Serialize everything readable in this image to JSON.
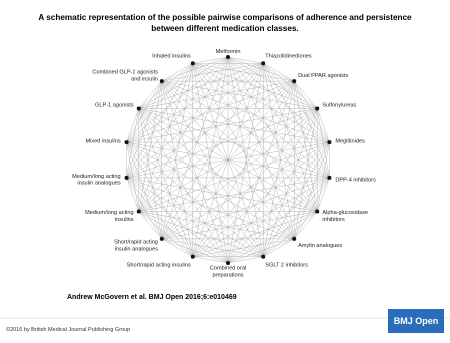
{
  "title": [
    "A schematic representation of the possible pairwise comparisons of adherence and persistence",
    "between different medication classes."
  ],
  "nodes": [
    {
      "label": [
        "Metformin"
      ]
    },
    {
      "label": [
        "Thiazolidinediones"
      ]
    },
    {
      "label": [
        "Dual PPAR agonists"
      ]
    },
    {
      "label": [
        "Sulfonylureas"
      ]
    },
    {
      "label": [
        "Meglitinides"
      ]
    },
    {
      "label": [
        "DPP-4 inhibitors"
      ]
    },
    {
      "label": [
        "Alpha-glucosidase",
        "inhibitors"
      ]
    },
    {
      "label": [
        "Amylin analogues"
      ]
    },
    {
      "label": [
        "SGLT 2 inhibitors"
      ]
    },
    {
      "label": [
        "Combined oral",
        "preparations"
      ]
    },
    {
      "label": [
        "Short/rapid acting insulins"
      ]
    },
    {
      "label": [
        "Short/rapid acting",
        "insulin analogues"
      ]
    },
    {
      "label": [
        "Medium/long acting",
        "insulins"
      ]
    },
    {
      "label": [
        "Medium/long acting",
        "insulin analogues"
      ]
    },
    {
      "label": [
        "Mixed insulins"
      ]
    },
    {
      "label": [
        "GLP-1 agonists"
      ]
    },
    {
      "label": [
        "Combined GLP-1 agonists",
        "and insulin"
      ]
    },
    {
      "label": [
        "Inhaled insulins"
      ]
    }
  ],
  "citation": "Andrew McGovern et al. BMJ Open 2016;6:e010469",
  "footer": "©2016 by British Medical Journal Publishing Group",
  "logo": "BMJ Open"
}
